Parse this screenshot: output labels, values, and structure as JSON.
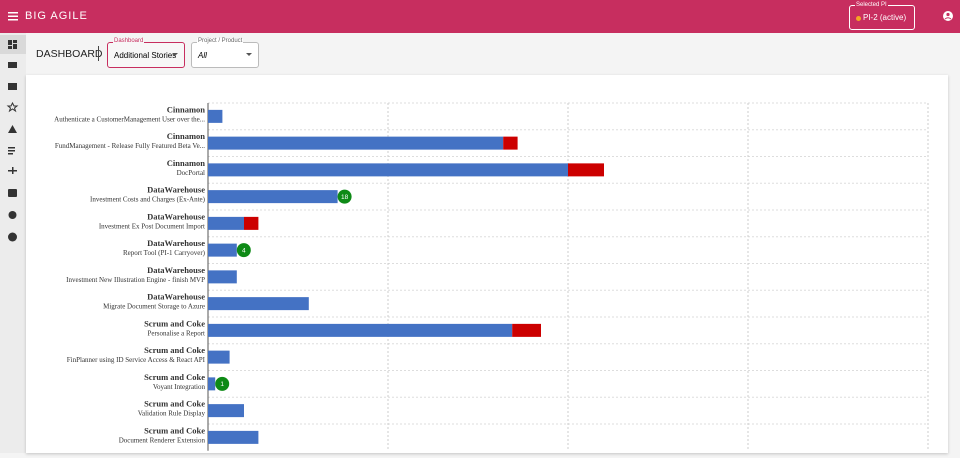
{
  "header": {
    "title": "BIG AGILE",
    "pi_label": "Selected PI",
    "pi_value": "PI-2 (active)"
  },
  "toolbar": {
    "heading": "DASHBOARD",
    "dashboard_label": "Dashboard",
    "dashboard_value": "Additional Stories",
    "project_label": "Project / Product",
    "project_value": "All"
  },
  "chart_data": {
    "type": "bar",
    "orientation": "horizontal",
    "stacked": true,
    "projects": [
      "Cinnamon",
      "Cinnamon",
      "Cinnamon",
      "DataWarehouse",
      "DataWarehouse",
      "DataWarehouse",
      "DataWarehouse",
      "DataWarehouse",
      "Scrum and Coke",
      "Scrum and Coke",
      "Scrum and Coke",
      "Scrum and Coke",
      "Scrum and Coke"
    ],
    "categories": [
      "Authenticate a CustomerManagement User over the...",
      "FundManagement - Release Fully Featured Beta Ve...",
      "DocPortal",
      "Investment Costs and Charges (Ex-Ante)",
      "Investment Ex Post Document Import",
      "Report Tool (PI-1 Carryover)",
      "Investment New Illustration Engine - finish MVP",
      "Migrate Document Storage to Azure",
      "Personalise a Report",
      "FinPlanner using ID Service Access & React API",
      "Voyant Integration",
      "Validation Rule Display",
      "Document Renderer Extension"
    ],
    "series": [
      {
        "color": "#4472c4",
        "values": [
          0.8,
          16.4,
          20,
          7.2,
          2,
          1.6,
          1.6,
          5.6,
          16.9,
          1.2,
          0.4,
          2,
          2.8
        ]
      },
      {
        "color": "#cc0000",
        "values": [
          0,
          0.8,
          2,
          0,
          0.8,
          0,
          0,
          0,
          1.6,
          0,
          0,
          0,
          0
        ]
      }
    ],
    "badges": [
      null,
      null,
      null,
      18,
      null,
      4,
      null,
      null,
      null,
      null,
      1,
      null,
      null
    ],
    "badge_color": "#0e8a16",
    "xlim": [
      0,
      40
    ],
    "xticks": [
      0,
      10,
      20,
      30,
      40
    ],
    "grid": true
  }
}
